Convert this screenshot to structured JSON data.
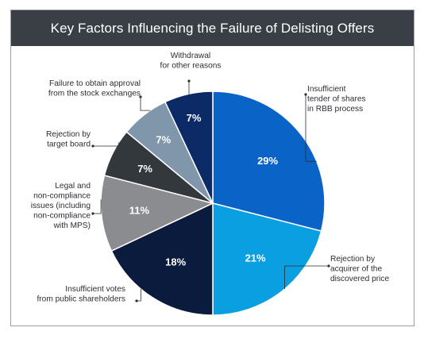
{
  "chart_data": {
    "type": "pie",
    "title": "Key Factors Influencing the Failure of Delisting Offers",
    "slices": [
      {
        "label": [
          "Insufficient",
          "tender of shares",
          "in RBB process"
        ],
        "value": 29,
        "display": "29%",
        "color": "#0a64c8"
      },
      {
        "label": [
          "Rejection by",
          "acquirer of the",
          "discovered price"
        ],
        "value": 21,
        "display": "21%",
        "color": "#0a9fe0"
      },
      {
        "label": [
          "Insufficient votes",
          "from public shareholders"
        ],
        "value": 18,
        "display": "18%",
        "color": "#0b1b3e"
      },
      {
        "label": [
          "Legal and",
          "non-compliance",
          "issues (including",
          "non-compliance",
          "with MPS)"
        ],
        "value": 11,
        "display": "11%",
        "color": "#8a8c8f"
      },
      {
        "label": [
          "Rejection by",
          "target board"
        ],
        "value": 7,
        "display": "7%",
        "color": "#33383d"
      },
      {
        "label": [
          "Failure to obtain approval",
          "from the stock exchanges"
        ],
        "value": 7,
        "display": "7%",
        "color": "#7f96ab"
      },
      {
        "label": [
          "Withdrawal",
          "for other reasons"
        ],
        "value": 7,
        "display": "7%",
        "color": "#0c2a66"
      }
    ]
  }
}
